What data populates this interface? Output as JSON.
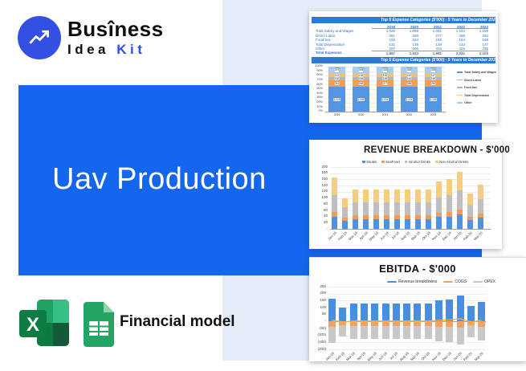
{
  "logo": {
    "line1": "Busîness",
    "line2_black": "Idea",
    "line2_blue": "Kit"
  },
  "hero": {
    "title": "Uav Production"
  },
  "footer": {
    "label": "Financial model"
  },
  "colors": {
    "hero_blue": "#1566ee",
    "logo_blue": "#3350e2",
    "panel_blue": "#e4ecf9",
    "header_bar_blue": "#2e79d8",
    "kit_blue": "#2b50e5",
    "excel_green": "#107c41",
    "sheets_green": "#23a566"
  },
  "chart_data": [
    {
      "id": "expense-table",
      "type": "table",
      "header": "Top 5 Expense Categories ($'000) - 5 Years to December 2023",
      "columns": [
        "2019",
        "2020",
        "2021",
        "2022",
        "2023"
      ],
      "rows": [
        {
          "label": "Total Salary and Wages",
          "values": [
            "1,028",
            "1,059",
            "1,091",
            "1,124",
            "1,158"
          ]
        },
        {
          "label": "Direct Labor",
          "values": [
            "261",
            "269",
            "277",
            "285",
            "294"
          ]
        },
        {
          "label": "Food box",
          "values": [
            "150",
            "154",
            "159",
            "164",
            "169"
          ]
        },
        {
          "label": "Total Depreciation",
          "values": [
            "131",
            "135",
            "139",
            "143",
            "147"
          ]
        },
        {
          "label": "Other",
          "values": [
            "297",
            "306",
            "315",
            "325",
            "335"
          ]
        }
      ],
      "total": {
        "label": "Total Expenses",
        "values": [
          "1,867",
          "1,923",
          "1,981",
          "2,041",
          "2,103"
        ]
      }
    },
    {
      "id": "expense-stacked",
      "type": "bar",
      "stacked": true,
      "percent_axis": true,
      "header": "Top 5 Expense Categories ($'000) - 5 Years to December 2023",
      "categories": [
        "2019",
        "2020",
        "2021",
        "2022",
        "2023"
      ],
      "yticks": [
        "100%",
        "90%",
        "80%",
        "70%",
        "60%",
        "50%",
        "40%",
        "30%",
        "20%",
        "10%",
        "0%"
      ],
      "legend_position": "right",
      "series": [
        {
          "name": "Total Salary and Wages",
          "color": "#5596e3",
          "percents": [
            55,
            55,
            55,
            55,
            55
          ],
          "labels": [
            "1,028",
            "1,059",
            "1,091",
            "1,124",
            "1,158"
          ]
        },
        {
          "name": "Direct Labor",
          "color": "#f49d55",
          "percents": [
            14,
            14,
            14,
            14,
            14
          ],
          "labels": [
            "261",
            "269",
            "277",
            "285",
            "294"
          ]
        },
        {
          "name": "Food box",
          "color": "#b5b5b5",
          "percents": [
            8,
            8,
            8,
            8,
            8
          ],
          "labels": [
            "150",
            "154",
            "159",
            "164",
            "169"
          ]
        },
        {
          "name": "Total Depreciation",
          "color": "#f0c173",
          "percents": [
            7,
            7,
            7,
            7,
            7
          ],
          "labels": [
            "131",
            "135",
            "139",
            "143",
            "147"
          ]
        },
        {
          "name": "Other",
          "color": "#a9cdf1",
          "percents": [
            16,
            16,
            16,
            16,
            16
          ],
          "labels": [
            "297",
            "306",
            "315",
            "325",
            "335"
          ]
        }
      ]
    },
    {
      "id": "revenue-breakdown",
      "type": "bar",
      "stacked": true,
      "title": "REVENUE BREAKDOWN - $'000",
      "categories": [
        "Jan-19",
        "Feb-19",
        "Mar-19",
        "Apr-19",
        "May-19",
        "Jun-19",
        "Jul-19",
        "Aug-19",
        "Sep-19",
        "Oct-19",
        "Nov-19",
        "Dec-19",
        "Jan-20",
        "Feb-20",
        "Mar-20"
      ],
      "ylim": [
        0,
        200
      ],
      "yticks": [
        "200",
        "180",
        "160",
        "140",
        "120",
        "100",
        "80",
        "60",
        "40",
        "20",
        "-"
      ],
      "legend_position": "top",
      "series": [
        {
          "name": "Steaks",
          "color": "#4e92e0",
          "values": [
            40,
            26,
            32,
            32,
            32,
            32,
            32,
            32,
            32,
            32,
            38,
            40,
            46,
            29,
            36
          ]
        },
        {
          "name": "SeaFood",
          "color": "#f29c5a",
          "values": [
            15,
            10,
            12,
            12,
            12,
            12,
            12,
            12,
            12,
            12,
            14,
            15,
            17,
            11,
            13
          ]
        },
        {
          "name": "Alcohol Drinks",
          "color": "#bfbfbf",
          "values": [
            55,
            33,
            42,
            42,
            42,
            42,
            42,
            42,
            42,
            42,
            50,
            53,
            61,
            37,
            47
          ]
        },
        {
          "name": "Non Alcohol Drinks",
          "color": "#f6cd7d",
          "values": [
            55,
            31,
            41,
            41,
            41,
            41,
            41,
            41,
            41,
            41,
            50,
            52,
            61,
            36,
            47
          ]
        }
      ]
    },
    {
      "id": "ebitda",
      "type": "bar-line",
      "title": "EBITDA - $'000",
      "categories": [
        "Jan-19",
        "Feb-19",
        "Mar-19",
        "Apr-19",
        "May-19",
        "Jun-19",
        "Jul-19",
        "Aug-19",
        "Sep-19",
        "Oct-19",
        "Nov-19",
        "Dec-19",
        "Jan-20",
        "Feb-20",
        "Mar-20"
      ],
      "ylim": [
        -200,
        250
      ],
      "yticks": [
        "250",
        "200",
        "150",
        "100",
        "50",
        "-",
        "(50)",
        "(100)",
        "(150)",
        "(200)"
      ],
      "legend_position": "top",
      "series": [
        {
          "name": "Revenue breakdowns",
          "color": "#478fe1",
          "values": [
            165,
            100,
            127,
            127,
            127,
            127,
            127,
            127,
            127,
            127,
            152,
            160,
            185,
            113,
            143
          ]
        },
        {
          "name": "COGS",
          "color": "#f2a265",
          "values": [
            -41,
            -25,
            -32,
            -32,
            -32,
            -32,
            -32,
            -32,
            -32,
            -32,
            -38,
            -40,
            -46,
            -28,
            -36
          ]
        },
        {
          "name": "OPEX",
          "color": "#c8c8c8",
          "values": [
            -114,
            -80,
            -92,
            -92,
            -92,
            -92,
            -92,
            -92,
            -92,
            -92,
            -104,
            -108,
            -119,
            -88,
            -99
          ]
        }
      ],
      "line": {
        "name": "EBITDA",
        "color": "#f5b042",
        "values": [
          10,
          -5,
          3,
          3,
          3,
          3,
          3,
          3,
          3,
          3,
          10,
          12,
          20,
          -3,
          8
        ]
      }
    }
  ]
}
